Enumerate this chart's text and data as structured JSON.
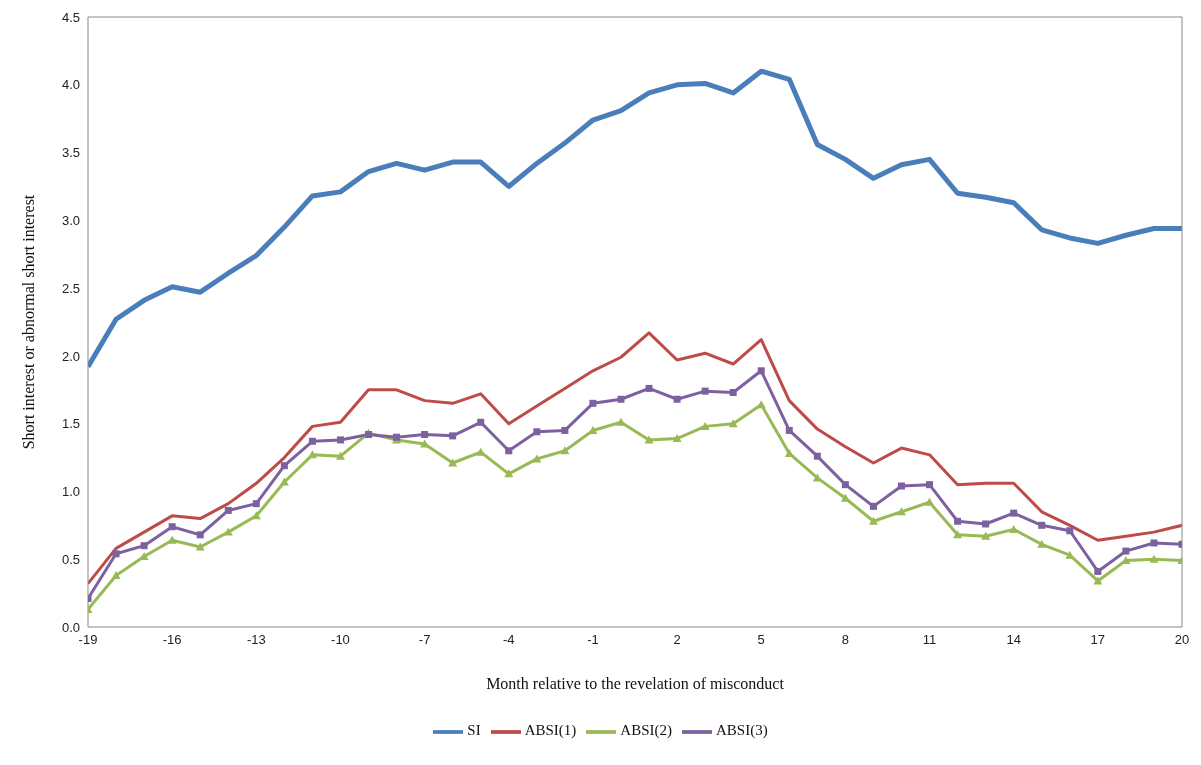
{
  "chart_data": {
    "type": "line",
    "xlabel": "Month relative to the revelation of misconduct",
    "ylabel": "Short interest or abnormal short interest",
    "x": [
      -19,
      -18,
      -17,
      -16,
      -15,
      -14,
      -13,
      -12,
      -11,
      -10,
      -9,
      -8,
      -7,
      -6,
      -5,
      -4,
      -3,
      -2,
      -1,
      0,
      1,
      2,
      3,
      4,
      5,
      6,
      7,
      8,
      9,
      10,
      11,
      12,
      13,
      14,
      15,
      16,
      17,
      18,
      19,
      20
    ],
    "xlim": [
      -19,
      20
    ],
    "xticks": [
      -19,
      -16,
      -13,
      -10,
      -7,
      -4,
      -1,
      2,
      5,
      8,
      11,
      14,
      17,
      20
    ],
    "ylim": [
      0,
      4.5
    ],
    "yticks": [
      {
        "value": 0,
        "label": "0.0"
      },
      {
        "value": 0.5,
        "label": "0.5"
      },
      {
        "value": 1,
        "label": "1.0"
      },
      {
        "value": 1.5,
        "label": "1.5"
      },
      {
        "value": 2,
        "label": "2.0"
      },
      {
        "value": 2.5,
        "label": "2.5"
      },
      {
        "value": 3,
        "label": "3.0"
      },
      {
        "value": 3.5,
        "label": "3.5"
      },
      {
        "value": 4,
        "label": "4.0"
      },
      {
        "value": 4.5,
        "label": "4.5"
      }
    ],
    "grid": false,
    "legend": "bottom",
    "line_style": "solid",
    "series": [
      {
        "name": "SI",
        "color": "#4a7ebb",
        "marker": "none",
        "values": [
          1.92,
          2.27,
          2.41,
          2.51,
          2.47,
          2.61,
          2.74,
          2.95,
          3.18,
          3.21,
          3.36,
          3.42,
          3.37,
          3.43,
          3.43,
          3.25,
          3.42,
          3.57,
          3.74,
          3.81,
          3.94,
          4.0,
          4.01,
          3.94,
          4.1,
          4.04,
          3.56,
          3.45,
          3.31,
          3.41,
          3.45,
          3.2,
          3.17,
          3.13,
          2.93,
          2.87,
          2.83,
          2.89,
          2.94,
          2.94
        ]
      },
      {
        "name": "ABSI(1)",
        "color": "#be4b48",
        "marker": "none",
        "values": [
          0.32,
          0.58,
          0.7,
          0.82,
          0.8,
          0.91,
          1.06,
          1.25,
          1.48,
          1.51,
          1.75,
          1.75,
          1.67,
          1.65,
          1.72,
          1.5,
          1.63,
          1.76,
          1.89,
          1.99,
          2.17,
          1.97,
          2.02,
          1.94,
          2.12,
          1.67,
          1.46,
          1.33,
          1.21,
          1.32,
          1.27,
          1.05,
          1.06,
          1.06,
          0.85,
          0.75,
          0.64,
          0.67,
          0.7,
          0.75
        ]
      },
      {
        "name": "ABSI(2)",
        "color": "#98b954",
        "marker": "triangle",
        "values": [
          0.13,
          0.38,
          0.52,
          0.64,
          0.59,
          0.7,
          0.82,
          1.07,
          1.27,
          1.26,
          1.43,
          1.38,
          1.35,
          1.21,
          1.29,
          1.13,
          1.24,
          1.3,
          1.45,
          1.51,
          1.38,
          1.39,
          1.48,
          1.5,
          1.64,
          1.28,
          1.1,
          0.95,
          0.78,
          0.85,
          0.92,
          0.68,
          0.67,
          0.72,
          0.61,
          0.53,
          0.34,
          0.49,
          0.5,
          0.49
        ]
      },
      {
        "name": "ABSI(3)",
        "color": "#7d60a0",
        "marker": "square",
        "values": [
          0.21,
          0.54,
          0.6,
          0.74,
          0.68,
          0.86,
          0.91,
          1.19,
          1.37,
          1.38,
          1.42,
          1.4,
          1.42,
          1.41,
          1.51,
          1.3,
          1.44,
          1.45,
          1.65,
          1.68,
          1.76,
          1.68,
          1.74,
          1.73,
          1.89,
          1.45,
          1.26,
          1.05,
          0.89,
          1.04,
          1.05,
          0.78,
          0.76,
          0.84,
          0.75,
          0.71,
          0.41,
          0.56,
          0.62,
          0.61
        ]
      }
    ]
  }
}
